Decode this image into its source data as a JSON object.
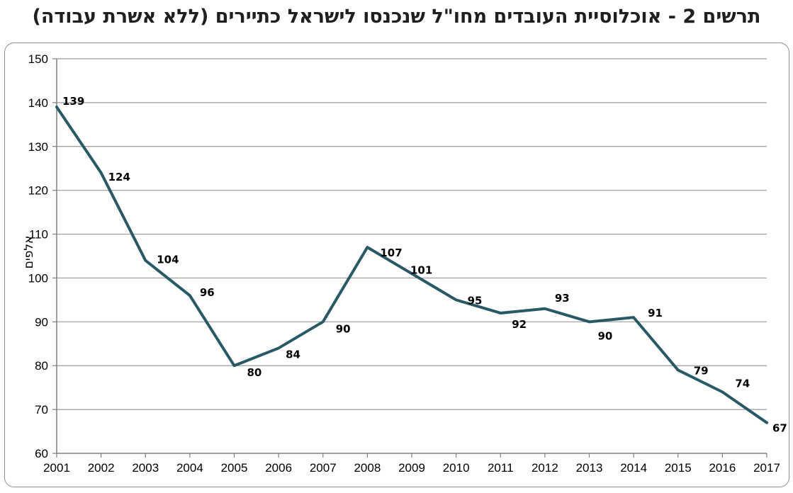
{
  "title": "תרשים 2 - אוכלוסיית העובדים מחו\"ל שנכנסו לישראל כתיירים (ללא אשרת עבודה)",
  "chart_data": {
    "type": "line",
    "title": "תרשים 2 - אוכלוסיית העובדים מחו\"ל שנכנסו לישראל כתיירים (ללא אשרת עבודה)",
    "xlabel": "",
    "ylabel": "אלפים",
    "ylim": [
      60,
      150
    ],
    "yticks": [
      60,
      70,
      80,
      90,
      100,
      110,
      120,
      130,
      140,
      150
    ],
    "grid": true,
    "categories": [
      "2001",
      "2002",
      "2003",
      "2004",
      "2005",
      "2006",
      "2007",
      "2008",
      "2009",
      "2010",
      "2011",
      "2012",
      "2013",
      "2014",
      "2015",
      "2016",
      "2017"
    ],
    "series": [
      {
        "name": "עובדים מחו\"ל",
        "values": [
          139,
          124,
          104,
          96,
          80,
          84,
          90,
          107,
          101,
          95,
          92,
          93,
          90,
          91,
          79,
          74,
          67
        ],
        "color": "#2a5966"
      }
    ],
    "data_labels": [
      "139",
      "124",
      "104",
      "96",
      "80",
      "84",
      "90",
      "107",
      "101",
      "95",
      "92",
      "93",
      "90",
      "91",
      "79",
      "74",
      "67"
    ]
  },
  "colors": {
    "line": "#2a5966",
    "grid": "#9a9a9a",
    "axis": "#7f7f7f"
  }
}
